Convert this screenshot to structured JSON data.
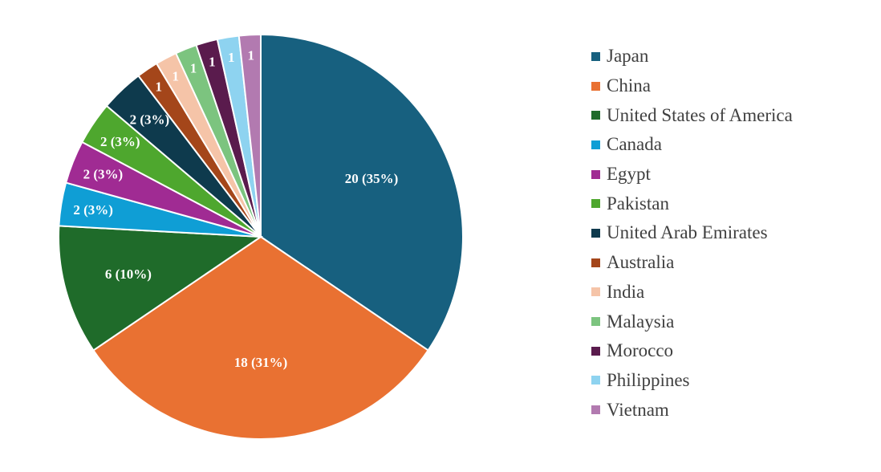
{
  "chart_data": {
    "type": "pie",
    "title": "",
    "legend_position": "right",
    "slices": [
      {
        "label": "Japan",
        "value": 20,
        "data_label": "20 (35%)",
        "color": "#17607F"
      },
      {
        "label": "China",
        "value": 18,
        "data_label": "18 (31%)",
        "color": "#E97132"
      },
      {
        "label": "United States of America",
        "value": 6,
        "data_label": "6 (10%)",
        "color": "#1F6B2A"
      },
      {
        "label": "Canada",
        "value": 2,
        "data_label": "2 (3%)",
        "color": "#0F9ED5"
      },
      {
        "label": "Egypt",
        "value": 2,
        "data_label": "2 (3%)",
        "color": "#A02B93"
      },
      {
        "label": "Pakistan",
        "value": 2,
        "data_label": "2 (3%)",
        "color": "#4EA72E"
      },
      {
        "label": "United Arab Emirates",
        "value": 2,
        "data_label": "2 (3%)",
        "color": "#0E3A4D"
      },
      {
        "label": "Australia",
        "value": 1,
        "data_label": "1",
        "color": "#A4461A"
      },
      {
        "label": "India",
        "value": 1,
        "data_label": "1",
        "color": "#F5C4A8"
      },
      {
        "label": "Malaysia",
        "value": 1,
        "data_label": "1",
        "color": "#7CC47F"
      },
      {
        "label": "Morocco",
        "value": 1,
        "data_label": "1",
        "color": "#5A1B4D"
      },
      {
        "label": "Philippines",
        "value": 1,
        "data_label": "1",
        "color": "#8ED3F0"
      },
      {
        "label": "Vietnam",
        "value": 1,
        "data_label": "1",
        "color": "#B27AB0"
      }
    ]
  }
}
